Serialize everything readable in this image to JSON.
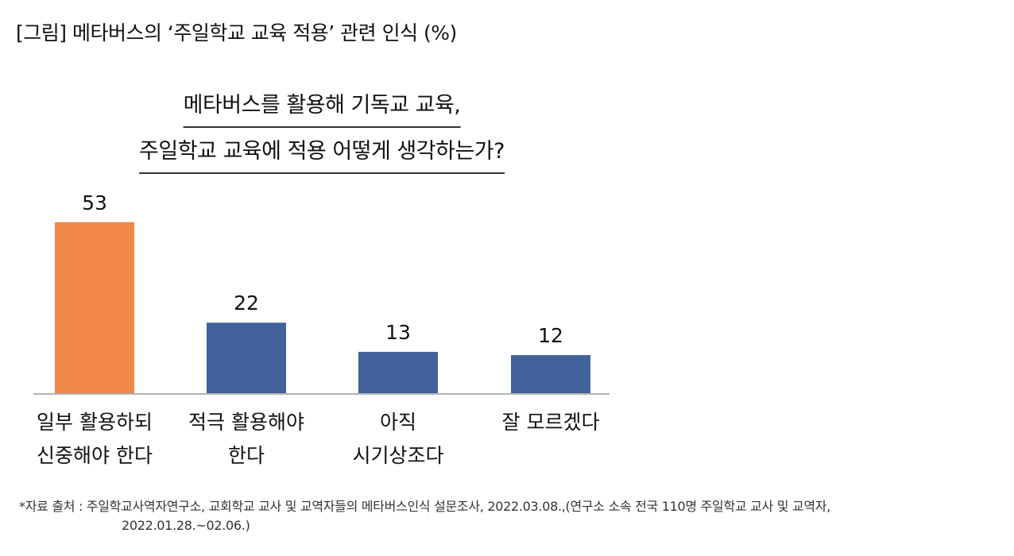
{
  "figure_caption": "[그림] 메타버스의 ‘주일학교 교육 적용’ 관련 인식 (%)",
  "question": {
    "line1": "메타버스를 활용해 기독교 교육,",
    "line2": "주일학교 교육에 적용 어떻게 생각하는가?"
  },
  "chart_data": {
    "type": "bar",
    "categories": [
      [
        "일부 활용하되",
        "신중해야 한다"
      ],
      [
        "적극 활용해야",
        "한다"
      ],
      [
        "아직",
        "시기상조다"
      ],
      [
        "잘 모르겠다"
      ]
    ],
    "values": [
      53,
      22,
      13,
      12
    ],
    "bar_colors": [
      "#ef8747",
      "#41629a",
      "#41629a",
      "#41629a"
    ],
    "ylim": [
      0,
      60
    ],
    "grid": false,
    "axis_color": "#b3b3b3"
  },
  "source": {
    "line1": "*자료 출처 : 주일학교사역자연구소, 교회학교 교사 및 교역자들의 메타버스인식 설문조사, 2022.03.08.,(연구소 소속 전국 110명 주일학교 교사 및 교역자,",
    "line2": "2022.01.28.~02.06.)"
  }
}
